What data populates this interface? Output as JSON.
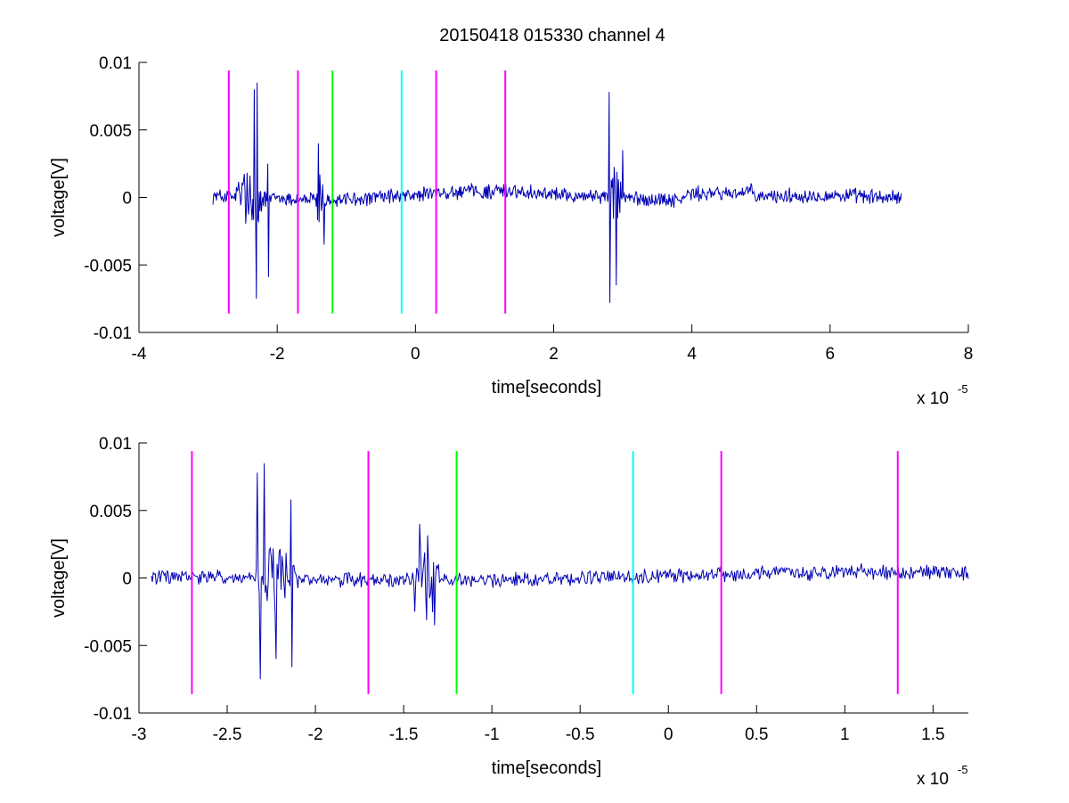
{
  "figure_title": "20150418 015330 channel 4",
  "chart_data": [
    {
      "type": "line",
      "title": "20150418 015330 channel 4",
      "xlabel": "time[seconds]",
      "ylabel": "voltage[V]",
      "x_multiplier_base": "x 10",
      "x_multiplier_exp": "-5",
      "xlim": [
        -4,
        8
      ],
      "ylim": [
        -0.01,
        0.01
      ],
      "xticks": [
        -4,
        -2,
        0,
        2,
        4,
        6,
        8
      ],
      "xtick_labels": [
        "-4",
        "-2",
        "0",
        "2",
        "4",
        "6",
        "8"
      ],
      "yticks": [
        -0.01,
        -0.005,
        0,
        0.005,
        0.01
      ],
      "ytick_labels": [
        "-0.01",
        "-0.005",
        "0",
        "0.005",
        "0.01"
      ],
      "grid": false,
      "signal_color": "#0000b4",
      "signal_x_range": [
        -2.93,
        7.03
      ],
      "bursts": [
        {
          "x": [
            -2.7,
            -2.1
          ],
          "peaks": [
            [
              -2.33,
              0.008
            ],
            [
              -2.29,
              0.0085
            ],
            [
              -2.31,
              -0.0075
            ],
            [
              -2.14,
              -0.0059
            ],
            [
              -2.14,
              0.0025
            ]
          ]
        },
        {
          "x": [
            -1.45,
            -1.3
          ],
          "peaks": [
            [
              -1.4,
              0.004
            ],
            [
              -1.33,
              -0.0035
            ]
          ]
        },
        {
          "x": [
            2.75,
            3.05
          ],
          "peaks": [
            [
              2.8,
              0.0078
            ],
            [
              2.8,
              -0.0078
            ],
            [
              3.0,
              0.0035
            ],
            [
              2.9,
              -0.0065
            ]
          ]
        }
      ],
      "vertical_markers": [
        {
          "x": -2.7,
          "color": "#ff00ff",
          "ymin": -0.0086,
          "ymax": 0.0094
        },
        {
          "x": -1.7,
          "color": "#ff00ff",
          "ymin": -0.0086,
          "ymax": 0.0094
        },
        {
          "x": -1.2,
          "color": "#00ff00",
          "ymin": -0.0086,
          "ymax": 0.0094
        },
        {
          "x": -0.2,
          "color": "#00ffff",
          "ymin": -0.0086,
          "ymax": 0.0094
        },
        {
          "x": 0.3,
          "color": "#ff00ff",
          "ymin": -0.0086,
          "ymax": 0.0094
        },
        {
          "x": 1.3,
          "color": "#ff00ff",
          "ymin": -0.0086,
          "ymax": 0.0094
        }
      ]
    },
    {
      "type": "line",
      "title": "",
      "xlabel": "time[seconds]",
      "ylabel": "voltage[V]",
      "x_multiplier_base": "x 10",
      "x_multiplier_exp": "-5",
      "xlim": [
        -3,
        1.7
      ],
      "ylim": [
        -0.01,
        0.01
      ],
      "xticks": [
        -3,
        -2.5,
        -2,
        -1.5,
        -1,
        -0.5,
        0,
        0.5,
        1,
        1.5
      ],
      "xtick_labels": [
        "-3",
        "-2.5",
        "-2",
        "-1.5",
        "-1",
        "-0.5",
        "0",
        "0.5",
        "1",
        "1.5"
      ],
      "yticks": [
        -0.01,
        -0.005,
        0,
        0.005,
        0.01
      ],
      "ytick_labels": [
        "-0.01",
        "-0.005",
        "0",
        "0.005",
        "0.01"
      ],
      "grid": false,
      "signal_color": "#0000b4",
      "signal_x_range": [
        -2.93,
        1.7
      ],
      "bursts": [
        {
          "x": [
            -2.38,
            -2.08
          ],
          "peaks": [
            [
              -2.33,
              0.0078
            ],
            [
              -2.29,
              0.0085
            ],
            [
              -2.32,
              -0.0075
            ],
            [
              -2.23,
              -0.006
            ],
            [
              -2.14,
              -0.0066
            ],
            [
              -2.14,
              0.0058
            ]
          ]
        },
        {
          "x": [
            -1.45,
            -1.28
          ],
          "peaks": [
            [
              -1.41,
              0.004
            ],
            [
              -1.44,
              -0.0025
            ],
            [
              -1.33,
              -0.0035
            ]
          ]
        }
      ],
      "vertical_markers": [
        {
          "x": -2.7,
          "color": "#ff00ff",
          "ymin": -0.0086,
          "ymax": 0.0094
        },
        {
          "x": -1.7,
          "color": "#ff00ff",
          "ymin": -0.0086,
          "ymax": 0.0094
        },
        {
          "x": -1.2,
          "color": "#00ff00",
          "ymin": -0.0086,
          "ymax": 0.0094
        },
        {
          "x": -0.2,
          "color": "#00ffff",
          "ymin": -0.0086,
          "ymax": 0.0094
        },
        {
          "x": 0.3,
          "color": "#ff00ff",
          "ymin": -0.0086,
          "ymax": 0.0094
        },
        {
          "x": 1.3,
          "color": "#ff00ff",
          "ymin": -0.0086,
          "ymax": 0.0094
        }
      ]
    }
  ]
}
